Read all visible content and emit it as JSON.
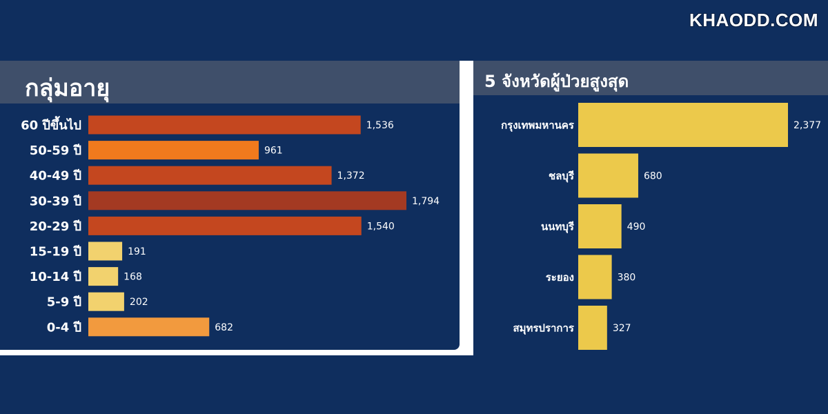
{
  "watermark": "KHAODD.COM",
  "left_panel": {
    "title": "กลุ่มอายุ"
  },
  "right_panel": {
    "title": "5 จังหวัดผู้ป่วยสูงสุด"
  },
  "chart_data": [
    {
      "type": "bar",
      "orientation": "horizontal",
      "title": "กลุ่มอายุ",
      "categories": [
        "60 ปีขึ้นไป",
        "50-59 ปี",
        "40-49 ปี",
        "30-39 ปี",
        "20-29 ปี",
        "15-19 ปี",
        "10-14 ปี",
        "5-9 ปี",
        "0-4 ปี"
      ],
      "values": [
        1536,
        961,
        1372,
        1794,
        1540,
        191,
        168,
        202,
        682
      ],
      "value_labels": [
        "1,536",
        "961",
        "1,372",
        "1,794",
        "1,540",
        "191",
        "168",
        "202",
        "682"
      ],
      "colors": [
        "#c4471f",
        "#f07a1d",
        "#c4471f",
        "#a43a22",
        "#c4471f",
        "#f2d26e",
        "#f2d26e",
        "#f2d26e",
        "#f29a3e"
      ],
      "xlim": [
        0,
        1794
      ]
    },
    {
      "type": "bar",
      "orientation": "horizontal",
      "title": "5 จังหวัดผู้ป่วยสูงสุด",
      "categories": [
        "กรุงเทพมหานคร",
        "ชลบุรี",
        "นนทบุรี",
        "ระยอง",
        "สมุทรปราการ"
      ],
      "values": [
        2377,
        680,
        490,
        380,
        327
      ],
      "value_labels": [
        "2,377",
        "680",
        "490",
        "380",
        "327"
      ],
      "colors": [
        "#ecc94b",
        "#ecc94b",
        "#ecc94b",
        "#ecc94b",
        "#ecc94b"
      ],
      "xlim": [
        0,
        2377
      ]
    }
  ]
}
